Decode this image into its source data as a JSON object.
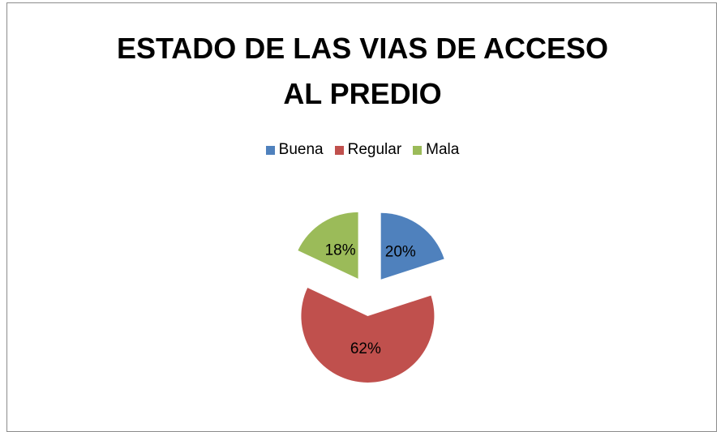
{
  "chart_data": {
    "type": "pie",
    "title": "ESTADO DE LAS VIAS DE ACCESO AL PREDIO",
    "categories": [
      "Buena",
      "Regular",
      "Mala"
    ],
    "values": [
      20,
      62,
      18
    ],
    "value_labels": [
      "20%",
      "62%",
      "18%"
    ],
    "colors": [
      "#4f81bd",
      "#c0504d",
      "#9bbb59"
    ],
    "legend": "top"
  }
}
